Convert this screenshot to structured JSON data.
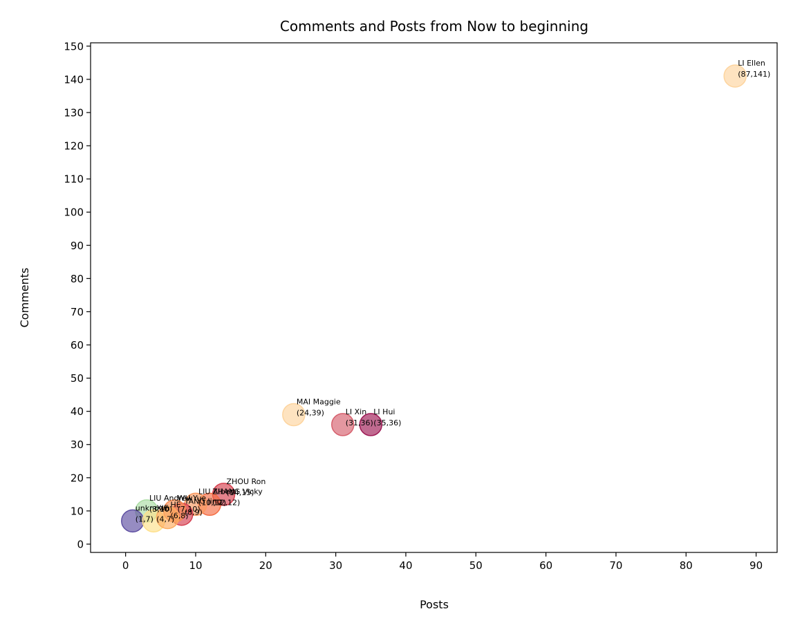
{
  "chart_data": {
    "type": "scatter",
    "title": "Comments and Posts from Now to beginning",
    "xlabel": "Posts",
    "ylabel": "Comments",
    "xlim": [
      -5,
      93
    ],
    "ylim": [
      -2.5,
      151
    ],
    "xticks": [
      0,
      10,
      20,
      30,
      40,
      50,
      60,
      70,
      80,
      90
    ],
    "yticks": [
      0,
      10,
      20,
      30,
      40,
      50,
      60,
      70,
      80,
      90,
      100,
      110,
      120,
      130,
      140,
      150
    ],
    "grid": false,
    "legend": "none",
    "points": [
      {
        "name": "LI Ellen",
        "label": "(87,141)",
        "x": 87,
        "y": 141,
        "color": "#fdd49e"
      },
      {
        "name": "MAI Maggie",
        "label": "(24,39)",
        "x": 24,
        "y": 39,
        "color": "#fdd49e"
      },
      {
        "name": "LI Xin",
        "label": "(31,36)",
        "x": 31,
        "y": 36,
        "color": "#d6606d"
      },
      {
        "name": "LI Hui",
        "label": "(35,36)",
        "x": 35,
        "y": 36,
        "color": "#9e1a55"
      },
      {
        "name": "ZHOU Ron",
        "label": "(14,15)",
        "x": 14,
        "y": 15,
        "color": "#d6404e"
      },
      {
        "name": "ZHANG Vicky",
        "label": "(12,12)",
        "x": 12,
        "y": 12,
        "color": "#f46d43"
      },
      {
        "name": "LIU Albert",
        "label": "(10,12)",
        "x": 10,
        "y": 12,
        "color": "#fb9a60"
      },
      {
        "name": "TANG Jing",
        "label": "(8,9)",
        "x": 8,
        "y": 9,
        "color": "#d53e4f"
      },
      {
        "name": "WU Yue",
        "label": "(7,10)",
        "x": 7,
        "y": 10,
        "color": "#f88d52"
      },
      {
        "name": "LIU Andrew",
        "label": "(3,10)",
        "x": 3,
        "y": 10,
        "color": "#abdda4"
      },
      {
        "name": "unknown",
        "label": "(1,7)",
        "x": 1,
        "y": 7,
        "color": "#5e4fa2"
      },
      {
        "name": "XIE",
        "label": "(4,7)",
        "x": 4,
        "y": 7,
        "color": "#fee08b"
      },
      {
        "name": "HE",
        "label": "(6,8)",
        "x": 6,
        "y": 8,
        "color": "#fdae61"
      }
    ]
  }
}
